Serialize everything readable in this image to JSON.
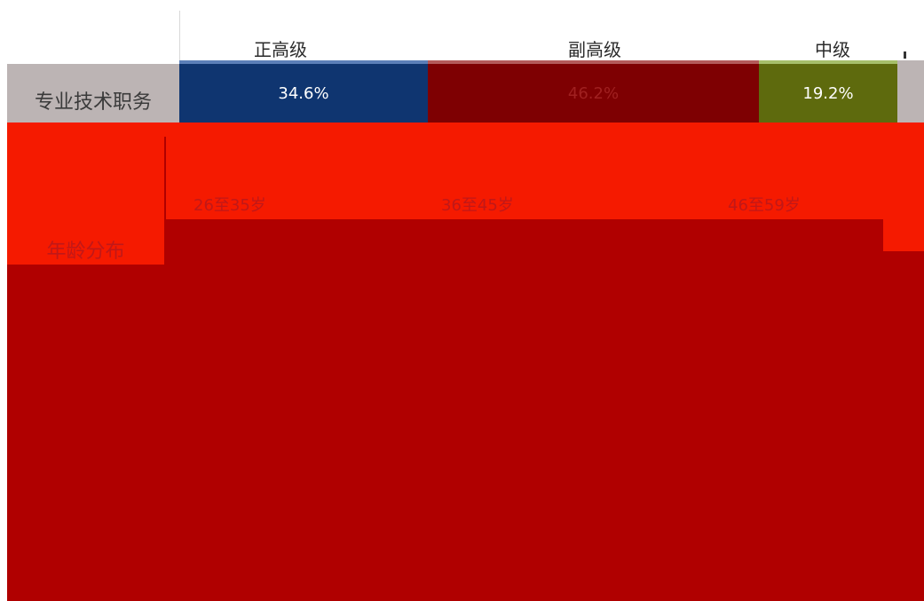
{
  "chart_data": {
    "type": "table",
    "rows": [
      {
        "label": "专业技术职务",
        "categories": [
          "正高级",
          "副高级",
          "中级"
        ],
        "values": [
          "34.6%",
          "46.2%",
          "19.2%"
        ],
        "colors": [
          "#0f3570",
          "#7e0002",
          "#5e6a0d"
        ]
      },
      {
        "label": "年龄分布",
        "categories": [
          "26至35岁",
          "36至45岁",
          "46至59岁"
        ]
      }
    ]
  },
  "colors": {
    "label_bg": "#bcb4b4",
    "bright_red": "#f51a00",
    "dark_red": "#b00000"
  }
}
